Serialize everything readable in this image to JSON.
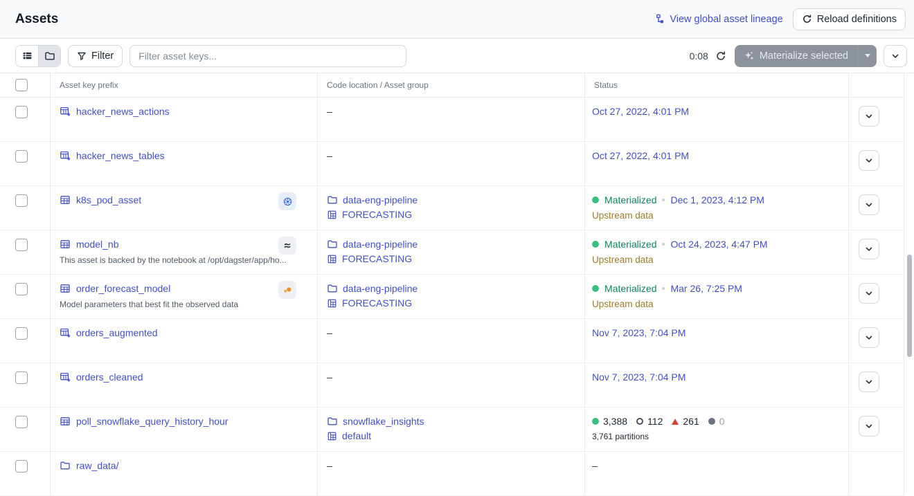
{
  "page_title": "Assets",
  "header": {
    "lineage_link": "View global asset lineage",
    "reload_button": "Reload definitions"
  },
  "toolbar": {
    "filter_label": "Filter",
    "search_placeholder": "Filter asset keys...",
    "timer": "0:08",
    "materialize_label": "Materialize selected"
  },
  "table": {
    "columns": {
      "asset": "Asset key prefix",
      "location": "Code location / Asset group",
      "status": "Status"
    },
    "empty_cell": "–",
    "rows": [
      {
        "name": "hacker_news_actions",
        "icon": "table-plus",
        "badge": null,
        "description": null,
        "location": null,
        "status": {
          "kind": "timestamp",
          "timestamp": "Oct 27, 2022, 4:01 PM"
        },
        "menu": true
      },
      {
        "name": "hacker_news_tables",
        "icon": "table-plus",
        "badge": null,
        "description": null,
        "location": null,
        "status": {
          "kind": "timestamp",
          "timestamp": "Oct 27, 2022, 4:01 PM"
        },
        "menu": true
      },
      {
        "name": "k8s_pod_asset",
        "icon": "table",
        "badge": "kubernetes",
        "description": null,
        "location": {
          "code_location": "data-eng-pipeline",
          "group": "FORECASTING"
        },
        "status": {
          "kind": "materialized",
          "label": "Materialized",
          "timestamp": "Dec 1, 2023, 4:12 PM",
          "secondary": "Upstream data"
        },
        "menu": true
      },
      {
        "name": "model_nb",
        "icon": "table",
        "badge": "noteable",
        "description": "This asset is backed by the notebook at /opt/dagster/app/ho...",
        "location": {
          "code_location": "data-eng-pipeline",
          "group": "FORECASTING"
        },
        "status": {
          "kind": "materialized",
          "label": "Materialized",
          "timestamp": "Oct 24, 2023, 4:47 PM",
          "secondary": "Upstream data"
        },
        "menu": true
      },
      {
        "name": "order_forecast_model",
        "icon": "table",
        "badge": "modal",
        "description": "Model parameters that best fit the observed data",
        "location": {
          "code_location": "data-eng-pipeline",
          "group": "FORECASTING"
        },
        "status": {
          "kind": "materialized",
          "label": "Materialized",
          "timestamp": "Mar 26, 7:25 PM",
          "secondary": "Upstream data"
        },
        "menu": true
      },
      {
        "name": "orders_augmented",
        "icon": "table-plus",
        "badge": null,
        "description": null,
        "location": null,
        "status": {
          "kind": "timestamp",
          "timestamp": "Nov 7, 2023, 7:04 PM"
        },
        "menu": true
      },
      {
        "name": "orders_cleaned",
        "icon": "table-plus",
        "badge": null,
        "description": null,
        "location": null,
        "status": {
          "kind": "timestamp",
          "timestamp": "Nov 7, 2023, 7:04 PM"
        },
        "menu": true
      },
      {
        "name": "poll_snowflake_query_history_hour",
        "icon": "table",
        "badge": null,
        "description": null,
        "location": {
          "code_location": "snowflake_insights",
          "group": "default"
        },
        "status": {
          "kind": "partitions",
          "counts": [
            {
              "glyph": "dot-green",
              "value": "3,388",
              "muted": false
            },
            {
              "glyph": "circle-outline",
              "value": "112",
              "muted": false
            },
            {
              "glyph": "triangle-red",
              "value": "261",
              "muted": false
            },
            {
              "glyph": "dot-gray",
              "value": "0",
              "muted": true
            }
          ],
          "secondary": "3,761 partitions"
        },
        "menu": true
      },
      {
        "name": "raw_data/",
        "icon": "folder",
        "badge": null,
        "description": null,
        "location": null,
        "status": {
          "kind": "dash"
        },
        "menu": false
      }
    ]
  },
  "colors": {
    "link": "#4150c8",
    "materialized_text": "#12855c",
    "materialized_dot": "#3dbd82",
    "upstream_warning": "#9d7a2d",
    "failed_red": "#cd4431",
    "disabled_button_bg": "#8d939d"
  }
}
